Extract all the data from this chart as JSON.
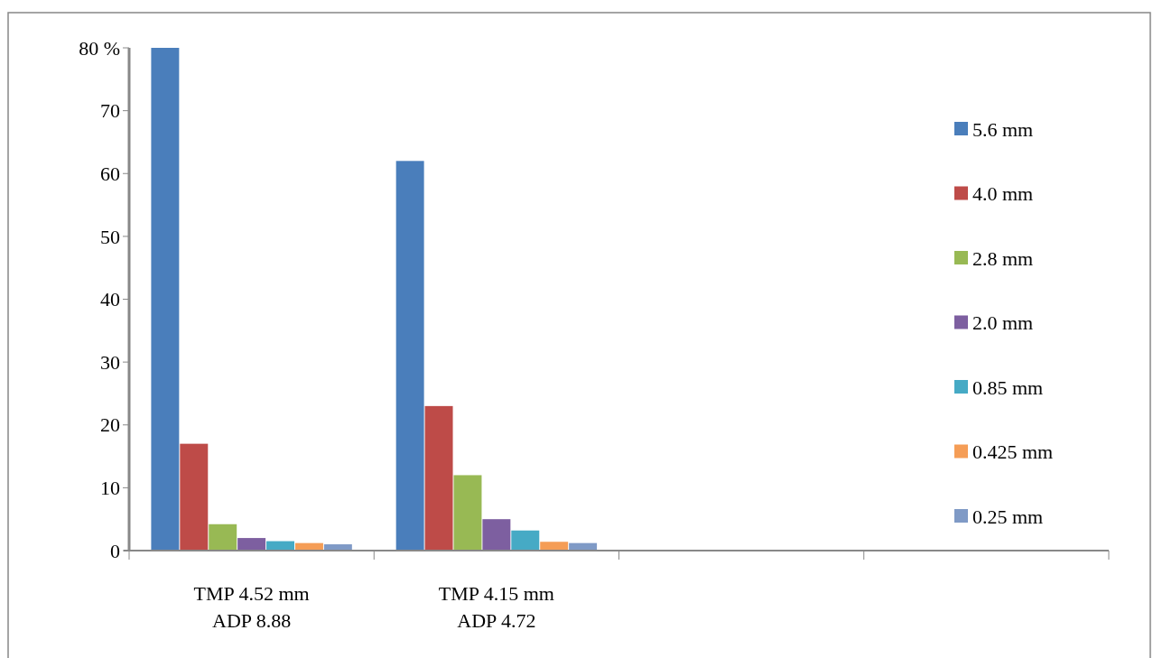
{
  "chart_data": {
    "type": "bar",
    "categories": [
      "TMP 4.52 mm\nADP 8.88",
      "TMP 4.15 mm\nADP 4.72",
      null,
      null
    ],
    "series": [
      {
        "name": "5.6 mm",
        "color": "#4a7ebb",
        "values": [
          80,
          62,
          null,
          null
        ]
      },
      {
        "name": "4.0 mm",
        "color": "#be4b48",
        "values": [
          17,
          23,
          null,
          null
        ]
      },
      {
        "name": "2.8 mm",
        "color": "#98b954",
        "values": [
          4.2,
          12,
          null,
          null
        ]
      },
      {
        "name": "2.0 mm",
        "color": "#7d5fa0",
        "values": [
          2,
          5,
          null,
          null
        ]
      },
      {
        "name": "0.85 mm",
        "color": "#46aac5",
        "values": [
          1.5,
          3.2,
          null,
          null
        ]
      },
      {
        "name": "0.425 mm",
        "color": "#f59d56",
        "values": [
          1.2,
          1.4,
          null,
          null
        ]
      },
      {
        "name": "0.25 mm",
        "color": "#7f9ac6",
        "values": [
          1,
          1.2,
          null,
          null
        ]
      }
    ],
    "ylim": [
      0,
      80
    ],
    "yticks": [
      0,
      10,
      20,
      30,
      40,
      50,
      60,
      70,
      {
        "value": 80,
        "label": "80 %"
      }
    ],
    "grid": false,
    "legend": "right"
  }
}
